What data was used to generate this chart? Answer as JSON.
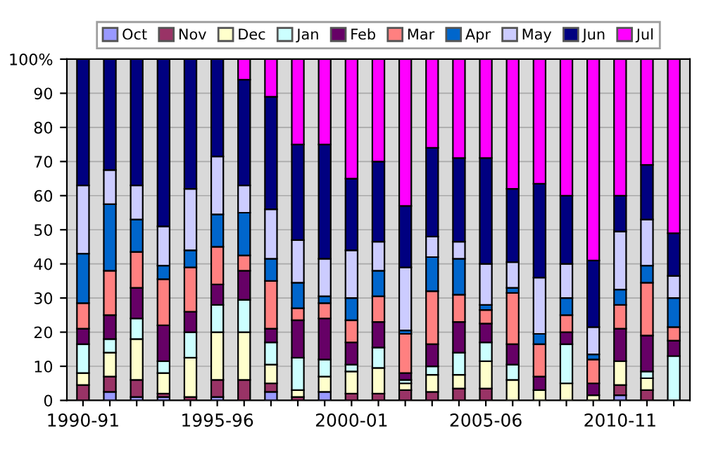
{
  "chart_data": {
    "type": "bar",
    "stacked": true,
    "categories": [
      "1990-91",
      null,
      null,
      null,
      null,
      "1995-96",
      null,
      null,
      null,
      null,
      "2000-01",
      null,
      null,
      null,
      null,
      "2005-06",
      null,
      null,
      null,
      null,
      "2010-11",
      null,
      null
    ],
    "series": [
      {
        "name": "Oct",
        "color": "#9999ff",
        "values": [
          0,
          2.5,
          1,
          1,
          0,
          1,
          0,
          2.5,
          0,
          2.5,
          0,
          0,
          0,
          0,
          0,
          0,
          0,
          0,
          0,
          0,
          1.5,
          0,
          0
        ]
      },
      {
        "name": "Nov",
        "color": "#993366",
        "values": [
          4.5,
          4.5,
          5,
          1,
          1,
          5,
          6,
          2.5,
          1,
          0,
          2,
          2,
          3,
          2.5,
          3.5,
          3.5,
          0,
          0,
          0,
          0,
          3,
          3,
          0
        ]
      },
      {
        "name": "Dec",
        "color": "#ffffcc",
        "values": [
          3.5,
          7,
          12,
          6,
          11.5,
          14,
          14,
          5.5,
          2,
          4.5,
          6.5,
          7.5,
          2,
          5,
          4,
          8,
          6,
          3,
          5,
          1.5,
          7,
          3.5,
          0
        ]
      },
      {
        "name": "Jan",
        "color": "#ccffff",
        "values": [
          8.5,
          4,
          6,
          3.5,
          7.5,
          8,
          9.5,
          6.5,
          9.5,
          5,
          2,
          6,
          1,
          2.5,
          6.5,
          5.5,
          4.5,
          0,
          11.5,
          0,
          0,
          2,
          13
        ]
      },
      {
        "name": "Feb",
        "color": "#660066",
        "values": [
          4.5,
          7,
          9,
          10.5,
          6,
          6,
          8.5,
          4,
          11,
          12,
          6.5,
          7.5,
          2,
          6.5,
          9,
          5.5,
          6,
          4,
          3.5,
          3.5,
          9.5,
          10.5,
          4.5
        ]
      },
      {
        "name": "Mar",
        "color": "#ff8080",
        "values": [
          7.5,
          13,
          10.5,
          13.5,
          13,
          11,
          4.5,
          14,
          3.5,
          4.5,
          6.5,
          7.5,
          11.5,
          15.5,
          8,
          4,
          15,
          9.5,
          5,
          7,
          7,
          15.5,
          4
        ]
      },
      {
        "name": "Apr",
        "color": "#0066cc",
        "values": [
          14.5,
          19.5,
          9.5,
          4,
          5,
          9.5,
          12.5,
          6.5,
          7.5,
          2,
          6.5,
          7.5,
          1,
          10,
          10.5,
          1.5,
          1.5,
          3,
          5,
          1.5,
          4.5,
          5,
          8.5
        ]
      },
      {
        "name": "May",
        "color": "#ccccff",
        "values": [
          20,
          10,
          10,
          11.5,
          18,
          17,
          8,
          14.5,
          12.5,
          11,
          14,
          8.5,
          18.5,
          6,
          5,
          12,
          7.5,
          16.5,
          10,
          8,
          17,
          13.5,
          6.5
        ]
      },
      {
        "name": "Jun",
        "color": "#000080",
        "values": [
          37,
          32.5,
          37,
          49,
          38,
          28.5,
          31,
          33,
          28,
          33.5,
          21,
          23.5,
          18,
          26,
          24.5,
          31,
          21.5,
          27.5,
          20,
          19.5,
          10.5,
          16,
          12.5
        ]
      },
      {
        "name": "Jul",
        "color": "#ff00ff",
        "values": [
          0,
          0,
          0,
          0,
          0,
          0,
          6,
          11,
          25,
          25,
          35,
          30,
          43,
          26,
          29,
          29,
          38,
          36.5,
          40,
          59,
          40,
          31,
          51
        ]
      }
    ],
    "ylim": [
      0,
      100
    ],
    "yticks": [
      0,
      10,
      20,
      30,
      40,
      50,
      60,
      70,
      80,
      90,
      {
        "value": 100,
        "label": "100%"
      }
    ],
    "grid": "y",
    "legend": "top"
  }
}
